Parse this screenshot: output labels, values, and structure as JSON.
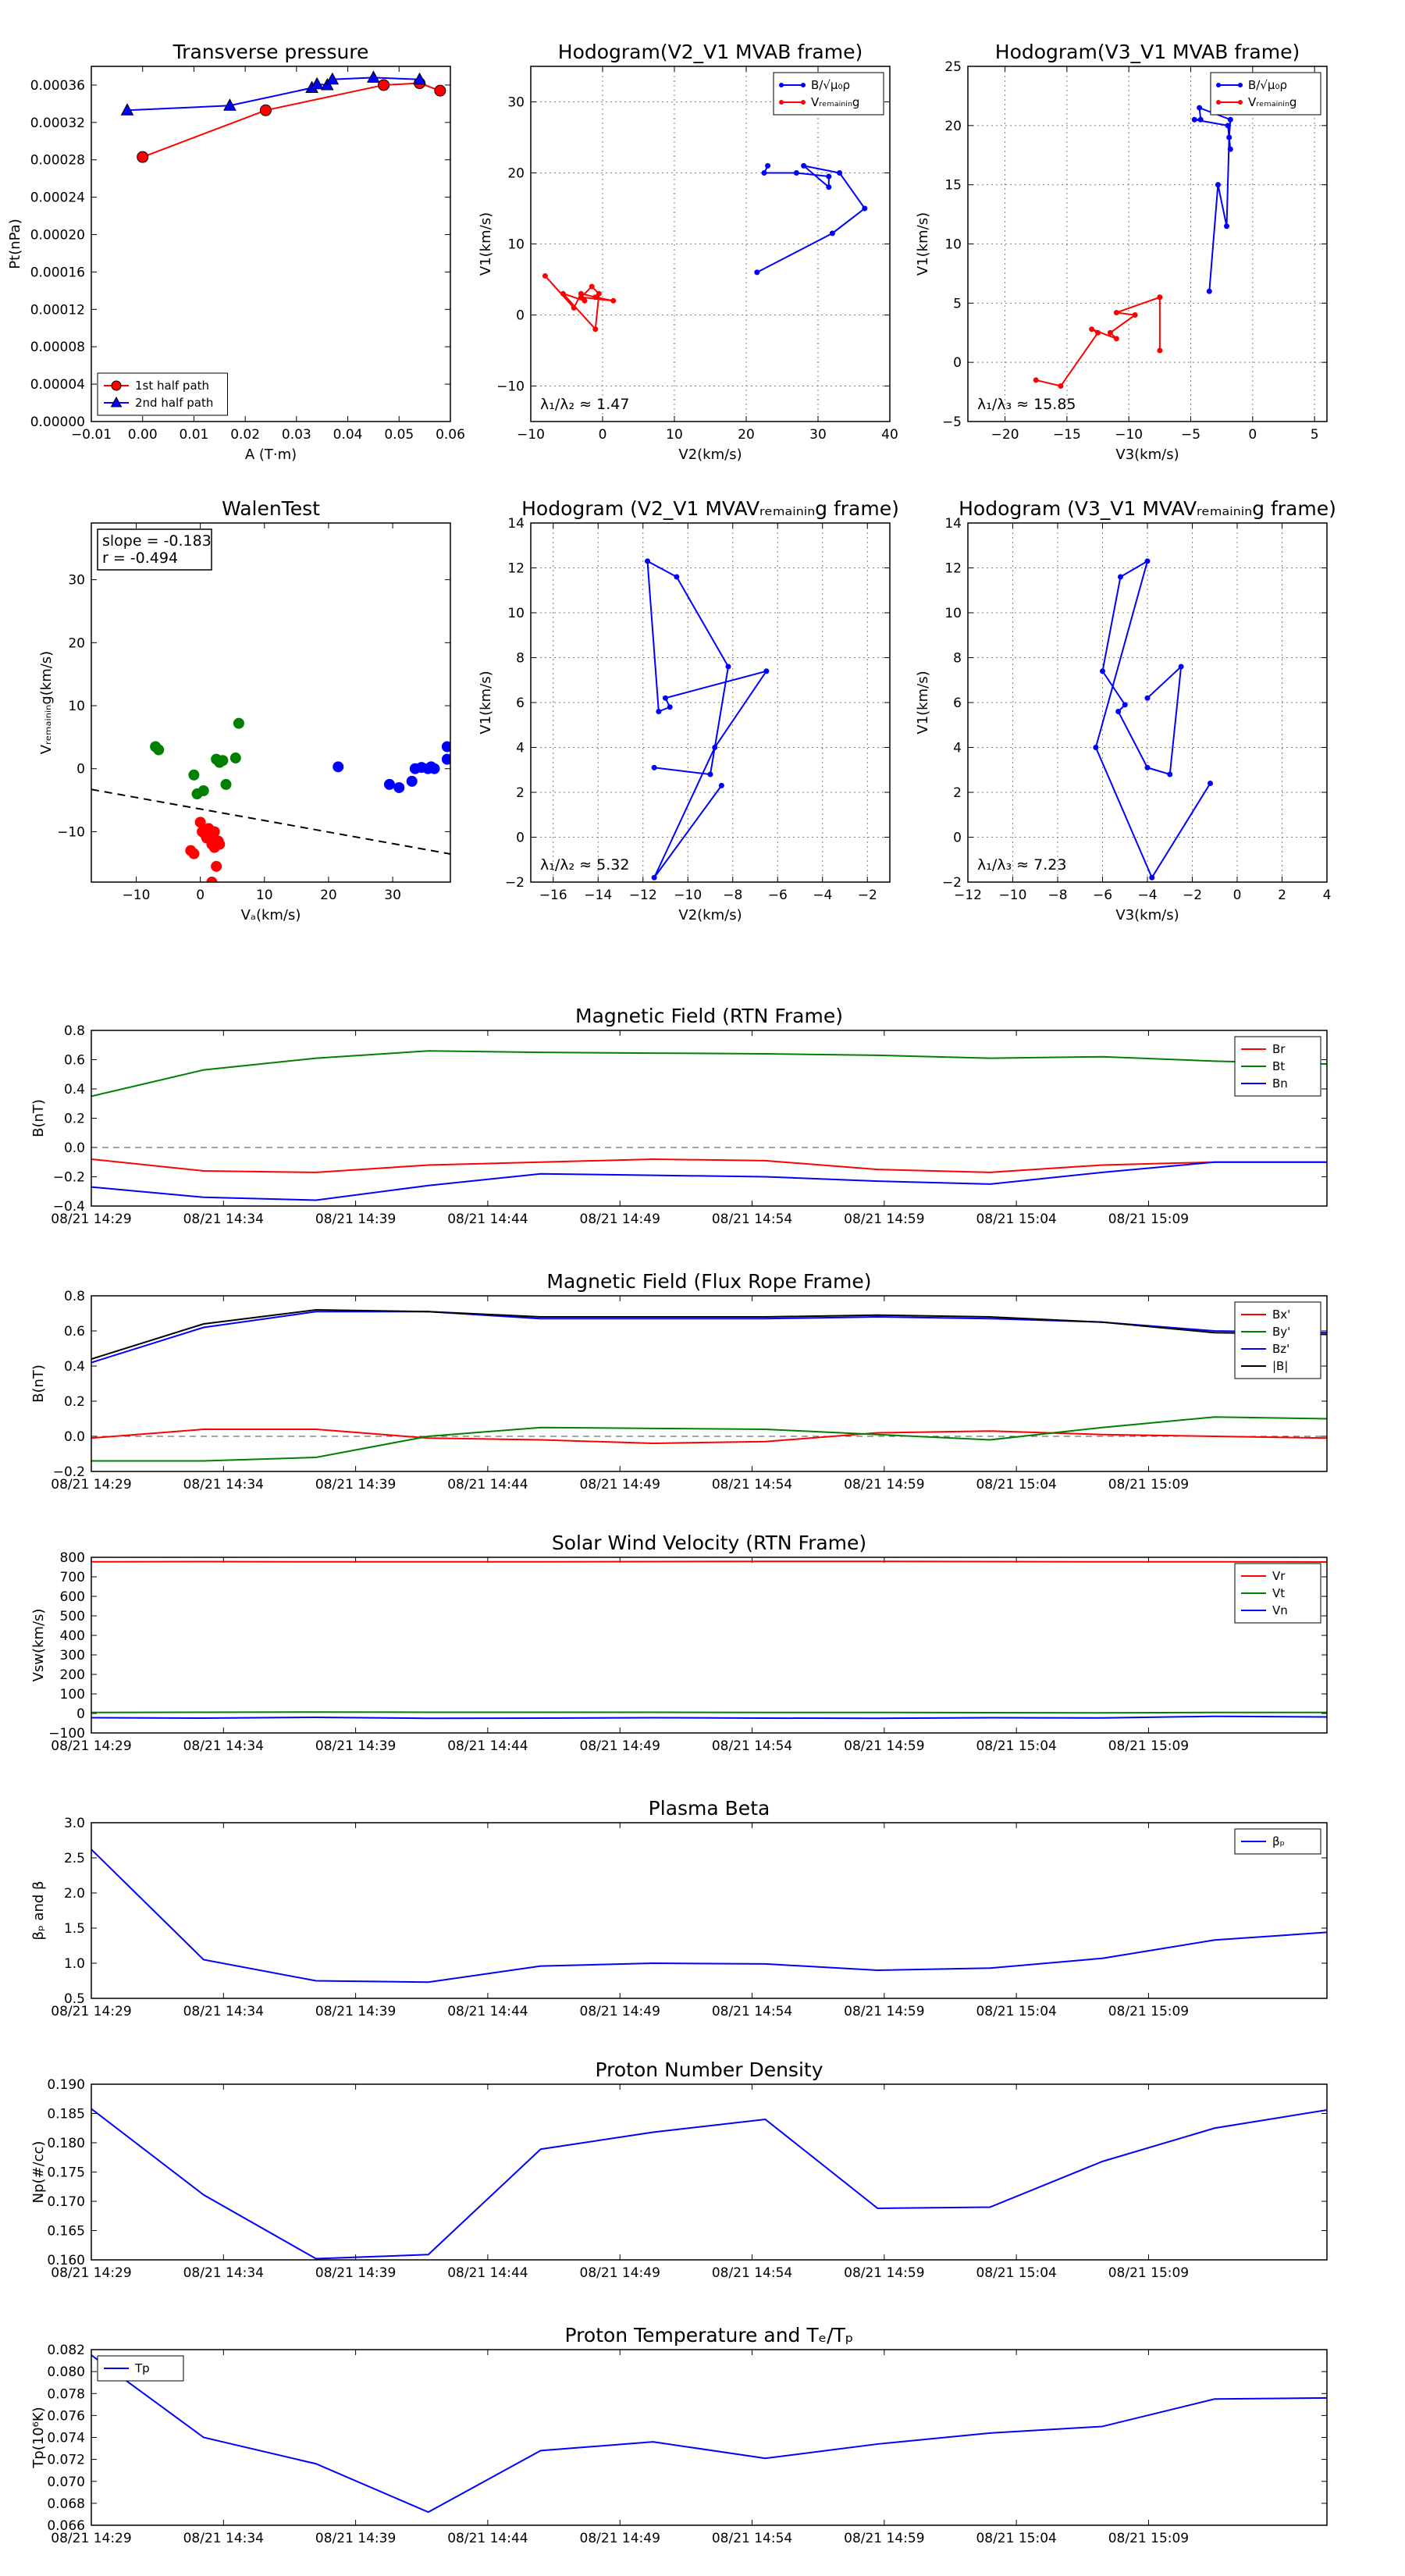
{
  "chart_data": [
    {
      "id": "transverse-pressure",
      "type": "line",
      "title": "Transverse pressure",
      "xlabel": "A (T·m)",
      "ylabel": "Pt(nPa)",
      "xlim": [
        -0.01,
        0.06
      ],
      "ylim": [
        0.0,
        0.00038
      ],
      "xticks": [
        -0.01,
        0.0,
        0.01,
        0.02,
        0.03,
        0.04,
        0.05,
        0.06
      ],
      "xtick_labels": [
        "−0.01",
        "0.00",
        "0.01",
        "0.02",
        "0.03",
        "0.04",
        "0.05",
        "0.06"
      ],
      "yticks": [
        0,
        4e-05,
        8e-05,
        0.00012,
        0.00016,
        0.0002,
        0.00024,
        0.00028,
        0.00032,
        0.00036
      ],
      "ytick_labels": [
        "0.00000",
        "0.00004",
        "0.00008",
        "0.00012",
        "0.00016",
        "0.00020",
        "0.00024",
        "0.00028",
        "0.00032",
        "0.00036"
      ],
      "legend_position": "bottom-left",
      "series": [
        {
          "name": "1st half path",
          "color": "#ff0000",
          "marker": "circle",
          "x": [
            0.0,
            0.024,
            0.047,
            0.054,
            0.058
          ],
          "y": [
            0.000283,
            0.000333,
            0.00036,
            0.000362,
            0.000354
          ]
        },
        {
          "name": "2nd half path",
          "color": "#0000ff",
          "marker": "triangle",
          "x": [
            -0.003,
            0.017,
            0.033,
            0.034,
            0.036,
            0.037,
            0.045,
            0.054
          ],
          "y": [
            0.000333,
            0.000338,
            0.000357,
            0.000361,
            0.00036,
            0.000366,
            0.000368,
            0.000366
          ]
        }
      ]
    },
    {
      "id": "hodogram-v2-v1-mvab",
      "type": "line",
      "title": "Hodogram(V2_V1 MVAB frame)",
      "xlabel": "V2(km/s)",
      "ylabel": "V1(km/s)",
      "xlim": [
        -10,
        40
      ],
      "ylim": [
        -15,
        35
      ],
      "xticks": [
        -10,
        0,
        10,
        20,
        30,
        40
      ],
      "xtick_labels": [
        "−10",
        "0",
        "10",
        "20",
        "30",
        "40"
      ],
      "yticks": [
        -10,
        0,
        10,
        20,
        30
      ],
      "ytick_labels": [
        "−10",
        "0",
        "10",
        "20",
        "30"
      ],
      "grid": true,
      "legend_position": "top-right",
      "annotation": "λ₁/λ₂ ≈ 1.47",
      "series": [
        {
          "name": "B/√μ₀ρ",
          "color": "#0000ff",
          "marker": "dot",
          "x": [
            21.5,
            32,
            36.5,
            33,
            28,
            31.5,
            31.5,
            27,
            22.5,
            23
          ],
          "y": [
            6,
            11.5,
            15,
            20,
            21,
            18,
            19.5,
            20,
            20,
            21
          ]
        },
        {
          "name": "Vᵣₑₘₐᵢₙᵢₙg",
          "color": "#ff0000",
          "marker": "dot",
          "x": [
            -8,
            -4,
            -3,
            -1,
            1.5,
            -3,
            -1.5,
            -0.5,
            -1,
            -5.5,
            -2.5
          ],
          "y": [
            5.5,
            1,
            3,
            2.5,
            2,
            2.5,
            4,
            3,
            -2,
            3,
            2
          ]
        }
      ]
    },
    {
      "id": "hodogram-v3-v1-mvab",
      "type": "line",
      "title": "Hodogram(V3_V1 MVAB frame)",
      "xlabel": "V3(km/s)",
      "ylabel": "V1(km/s)",
      "xlim": [
        -23,
        6
      ],
      "ylim": [
        -5,
        25
      ],
      "xticks": [
        -20,
        -15,
        -10,
        -5,
        0,
        5
      ],
      "xtick_labels": [
        "−20",
        "−15",
        "−10",
        "−5",
        "0",
        "5"
      ],
      "yticks": [
        -5,
        0,
        5,
        10,
        15,
        20,
        25
      ],
      "ytick_labels": [
        "−5",
        "0",
        "5",
        "10",
        "15",
        "20",
        "25"
      ],
      "grid": true,
      "legend_position": "top-right",
      "annotation": "λ₁/λ₃ ≈ 15.85",
      "series": [
        {
          "name": "B/√μ₀ρ",
          "color": "#0000ff",
          "marker": "dot",
          "x": [
            -3.5,
            -2.8,
            -2.1,
            -1.9,
            -1.8,
            -4.3,
            -4.2,
            -4.7,
            -2,
            -1.8
          ],
          "y": [
            6,
            15,
            11.5,
            19,
            20.5,
            21.5,
            20.5,
            20.5,
            20,
            18
          ]
        },
        {
          "name": "Vᵣₑₘₐᵢₙᵢₙg",
          "color": "#ff0000",
          "marker": "dot",
          "x": [
            -17.5,
            -15.5,
            -12.5,
            -13,
            -11,
            -11.5,
            -9.5,
            -11,
            -7.5,
            -7.5
          ],
          "y": [
            -1.5,
            -2,
            2.5,
            2.8,
            2,
            2.5,
            4,
            4.2,
            5.5,
            1
          ]
        }
      ]
    },
    {
      "id": "walen-test",
      "type": "scatter",
      "title": "WalenTest",
      "xlabel": "Vₐ(km/s)",
      "ylabel": "Vᵣₑₘₐᵢₙᵢₙg(km/s)",
      "xlim": [
        -17,
        39
      ],
      "ylim": [
        -18,
        39
      ],
      "xticks": [
        -10,
        0,
        10,
        20,
        30
      ],
      "xtick_labels": [
        "−10",
        "0",
        "10",
        "20",
        "30"
      ],
      "yticks": [
        -10,
        0,
        10,
        20,
        30
      ],
      "ytick_labels": [
        "−10",
        "0",
        "10",
        "20",
        "30"
      ],
      "annotation_lines": [
        "slope = -0.183",
        "r = -0.494"
      ],
      "fit_line": {
        "slope": -0.183,
        "intercept": -6.4
      },
      "series": [
        {
          "color": "#ff0000",
          "x": [
            0,
            0.3,
            0.8,
            1,
            1.3,
            1.8,
            2,
            2.5,
            2.2,
            -1.5,
            -1,
            2.5,
            1.8,
            3,
            2.8,
            2.2
          ],
          "y": [
            -8.5,
            -10,
            -10.5,
            -11,
            -9.5,
            -12,
            -11,
            -12,
            -12.5,
            -13,
            -13.5,
            -15.5,
            -18,
            -12,
            -11.5,
            -10
          ]
        },
        {
          "color": "#008000",
          "x": [
            -7,
            -6.5,
            -1,
            -0.5,
            0.5,
            2.5,
            3,
            3.5,
            4,
            5.5,
            6
          ],
          "y": [
            3.5,
            3,
            -1,
            -4,
            -3.5,
            1.5,
            1,
            1.3,
            -2.5,
            1.7,
            7.2
          ]
        },
        {
          "color": "#0000ff",
          "x": [
            21.5,
            29.5,
            31,
            33,
            33.5,
            34.5,
            35.5,
            36,
            36.5,
            38.5,
            38.5
          ],
          "y": [
            0.3,
            -2.5,
            -3,
            -2,
            0,
            0.2,
            0,
            0.3,
            0,
            1.5,
            3.5
          ]
        }
      ]
    },
    {
      "id": "hodogram-v2-v1-mvav",
      "type": "line",
      "title": "Hodogram (V2_V1 MVAVᵣₑₘₐᵢₙᵢₙg frame)",
      "xlabel": "V2(km/s)",
      "ylabel": "V1(km/s)",
      "xlim": [
        -17,
        -1
      ],
      "ylim": [
        -2,
        14
      ],
      "xticks": [
        -16,
        -14,
        -12,
        -10,
        -8,
        -6,
        -4,
        -2
      ],
      "xtick_labels": [
        "−16",
        "−14",
        "−12",
        "−10",
        "−8",
        "−6",
        "−4",
        "−2"
      ],
      "yticks": [
        -2,
        0,
        2,
        4,
        6,
        8,
        10,
        12,
        14
      ],
      "ytick_labels": [
        "−2",
        "0",
        "2",
        "4",
        "6",
        "8",
        "10",
        "12",
        "14"
      ],
      "grid": true,
      "annotation": "λ₁/λ₂ ≈ 5.32",
      "series": [
        {
          "color": "#0000ff",
          "marker": "dot",
          "x": [
            -8.5,
            -11.5,
            -8.8,
            -6.5,
            -11,
            -10.8,
            -11.3,
            -11.8,
            -10.5,
            -8.2,
            -9,
            -11.5
          ],
          "y": [
            2.3,
            -1.8,
            4,
            7.4,
            6.2,
            5.8,
            5.6,
            12.3,
            11.6,
            7.6,
            2.8,
            3.1
          ]
        }
      ]
    },
    {
      "id": "hodogram-v3-v1-mvav",
      "type": "line",
      "title": "Hodogram (V3_V1 MVAVᵣₑₘₐᵢₙᵢₙg frame)",
      "xlabel": "V3(km/s)",
      "ylabel": "V1(km/s)",
      "xlim": [
        -12,
        4
      ],
      "ylim": [
        -2,
        14
      ],
      "xticks": [
        -12,
        -10,
        -8,
        -6,
        -4,
        -2,
        0,
        2,
        4
      ],
      "xtick_labels": [
        "−12",
        "−10",
        "−8",
        "−6",
        "−4",
        "−2",
        "0",
        "2",
        "4"
      ],
      "yticks": [
        -2,
        0,
        2,
        4,
        6,
        8,
        10,
        12,
        14
      ],
      "ytick_labels": [
        "−2",
        "0",
        "2",
        "4",
        "6",
        "8",
        "10",
        "12",
        "14"
      ],
      "grid": true,
      "annotation": "λ₁/λ₃ ≈ 7.23",
      "series": [
        {
          "color": "#0000ff",
          "marker": "dot",
          "x": [
            -1.2,
            -3.8,
            -6.3,
            -4,
            -5.2,
            -6,
            -5,
            -5.3,
            -4,
            -3,
            -2.5,
            -4
          ],
          "y": [
            2.4,
            -1.8,
            4,
            12.3,
            11.6,
            7.4,
            5.9,
            5.6,
            3.1,
            2.8,
            7.6,
            6.2
          ]
        }
      ]
    },
    {
      "id": "mag-field-rtn",
      "type": "line",
      "title": "Magnetic Field (RTN Frame)",
      "ylabel": "B(nT)",
      "ylim": [
        -0.4,
        0.8
      ],
      "yticks": [
        -0.4,
        -0.2,
        0.0,
        0.2,
        0.4,
        0.6,
        0.8
      ],
      "ytick_labels": [
        "−0.4",
        "−0.2",
        "0.0",
        "0.2",
        "0.4",
        "0.6",
        "0.8"
      ],
      "zero_line": true,
      "legend_position": "top-right",
      "series": [
        {
          "name": "Br",
          "color": "#ff0000",
          "values": [
            -0.08,
            -0.16,
            -0.17,
            -0.12,
            -0.1,
            -0.08,
            -0.09,
            -0.15,
            -0.17,
            -0.12,
            -0.1,
            -0.1
          ]
        },
        {
          "name": "Bt",
          "color": "#008000",
          "values": [
            0.35,
            0.53,
            0.61,
            0.66,
            0.65,
            0.645,
            0.64,
            0.63,
            0.61,
            0.62,
            0.59,
            0.57
          ]
        },
        {
          "name": "Bn",
          "color": "#0000ff",
          "values": [
            -0.27,
            -0.34,
            -0.36,
            -0.26,
            -0.18,
            -0.19,
            -0.2,
            -0.23,
            -0.25,
            -0.17,
            -0.1,
            -0.1
          ]
        }
      ]
    },
    {
      "id": "mag-field-fluxrope",
      "type": "line",
      "title": "Magnetic Field (Flux Rope Frame)",
      "ylabel": "B(nT)",
      "ylim": [
        -0.2,
        0.8
      ],
      "yticks": [
        -0.2,
        0.0,
        0.2,
        0.4,
        0.6,
        0.8
      ],
      "ytick_labels": [
        "−0.2",
        "0.0",
        "0.2",
        "0.4",
        "0.6",
        "0.8"
      ],
      "zero_line": true,
      "legend_position": "top-right",
      "series": [
        {
          "name": "Bx'",
          "color": "#ff0000",
          "values": [
            -0.01,
            0.04,
            0.04,
            -0.01,
            -0.02,
            -0.04,
            -0.03,
            0.02,
            0.03,
            0.01,
            0.0,
            -0.01
          ]
        },
        {
          "name": "By'",
          "color": "#008000",
          "values": [
            -0.14,
            -0.14,
            -0.12,
            0.0,
            0.05,
            0.045,
            0.04,
            0.01,
            -0.02,
            0.05,
            0.11,
            0.1
          ]
        },
        {
          "name": "Bz'",
          "color": "#0000ff",
          "values": [
            0.42,
            0.62,
            0.71,
            0.71,
            0.67,
            0.67,
            0.67,
            0.68,
            0.67,
            0.65,
            0.6,
            0.59
          ]
        },
        {
          "name": "|B|",
          "color": "#000000",
          "values": [
            0.44,
            0.64,
            0.72,
            0.71,
            0.68,
            0.68,
            0.68,
            0.69,
            0.68,
            0.65,
            0.59,
            0.58
          ]
        }
      ]
    },
    {
      "id": "solar-wind-velocity",
      "type": "line",
      "title": "Solar Wind Velocity (RTN Frame)",
      "ylabel": "Vsw(km/s)",
      "ylim": [
        -100,
        800
      ],
      "yticks": [
        -100,
        0,
        100,
        200,
        300,
        400,
        500,
        600,
        700,
        800
      ],
      "ytick_labels": [
        "−100",
        "0",
        "100",
        "200",
        "300",
        "400",
        "500",
        "600",
        "700",
        "800"
      ],
      "legend_position": "top-right",
      "series": [
        {
          "name": "Vr",
          "color": "#ff0000",
          "values": [
            777,
            778,
            777,
            777,
            777,
            778,
            779,
            779,
            778,
            777,
            777,
            776
          ]
        },
        {
          "name": "Vt",
          "color": "#008000",
          "values": [
            5,
            6,
            7,
            6,
            6,
            6,
            5,
            5,
            4,
            3,
            5,
            5
          ]
        },
        {
          "name": "Vn",
          "color": "#0000ff",
          "values": [
            -22,
            -24,
            -20,
            -25,
            -24,
            -22,
            -24,
            -25,
            -22,
            -23,
            -15,
            -18
          ]
        }
      ]
    },
    {
      "id": "plasma-beta",
      "type": "line",
      "title": "Plasma Beta",
      "ylabel": "βₚ and β",
      "ylim": [
        0.5,
        3.0
      ],
      "yticks": [
        0.5,
        1.0,
        1.5,
        2.0,
        2.5,
        3.0
      ],
      "ytick_labels": [
        "0.5",
        "1.0",
        "1.5",
        "2.0",
        "2.5",
        "3.0"
      ],
      "legend_position": "top-right",
      "series": [
        {
          "name": "βₚ",
          "color": "#0000ff",
          "values": [
            2.62,
            1.05,
            0.75,
            0.73,
            0.96,
            1.0,
            0.99,
            0.9,
            0.93,
            1.07,
            1.33,
            1.44
          ]
        }
      ]
    },
    {
      "id": "proton-density",
      "type": "line",
      "title": "Proton Number Density",
      "ylabel": "Np(#/cc)",
      "ylim": [
        0.16,
        0.19
      ],
      "yticks": [
        0.16,
        0.165,
        0.17,
        0.175,
        0.18,
        0.185,
        0.19
      ],
      "ytick_labels": [
        "0.160",
        "0.165",
        "0.170",
        "0.175",
        "0.180",
        "0.185",
        "0.190"
      ],
      "series": [
        {
          "color": "#0000ff",
          "values": [
            0.1858,
            0.1711,
            0.1602,
            0.1609,
            0.1789,
            0.1818,
            0.184,
            0.1688,
            0.169,
            0.1768,
            0.1825,
            0.1856
          ]
        }
      ]
    },
    {
      "id": "proton-temperature",
      "type": "line",
      "title": "Proton Temperature and Tₑ/Tₚ",
      "ylabel": "Tp(10⁶K)",
      "ylim": [
        0.066,
        0.082
      ],
      "yticks": [
        0.066,
        0.068,
        0.07,
        0.072,
        0.074,
        0.076,
        0.078,
        0.08,
        0.082
      ],
      "ytick_labels": [
        "0.066",
        "0.068",
        "0.070",
        "0.072",
        "0.074",
        "0.076",
        "0.078",
        "0.080",
        "0.082"
      ],
      "legend_position": "top-left",
      "series": [
        {
          "name": "Tp",
          "color": "#0000ff",
          "values": [
            0.0815,
            0.074,
            0.0716,
            0.0672,
            0.0728,
            0.0736,
            0.0721,
            0.0734,
            0.0744,
            0.075,
            0.0775,
            0.0776
          ]
        }
      ]
    }
  ],
  "time_axis": {
    "tick_labels": [
      "08/21 14:29",
      "08/21 14:34",
      "08/21 14:39",
      "08/21 14:44",
      "08/21 14:49",
      "08/21 14:54",
      "08/21 14:59",
      "08/21 15:04",
      "08/21 15:09"
    ]
  },
  "colors": {
    "axes": "#000000",
    "grid": "#7f7f7f",
    "background": "#ffffff"
  }
}
